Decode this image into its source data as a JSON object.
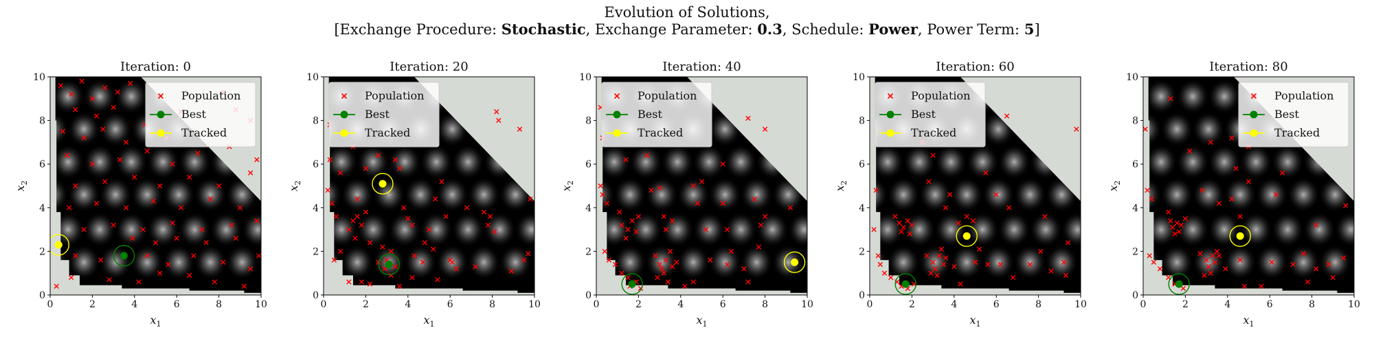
{
  "figure": {
    "title": "Evolution of Solutions,",
    "subtitle_parts": {
      "p1": "[Exchange Procedure: ",
      "b1": "Stochastic",
      "p2": ", Exchange Parameter: ",
      "b2": "0.3",
      "p3": ", Schedule: ",
      "b3": "Power",
      "p4": ", Power Term: ",
      "b4": "5",
      "p5": "]"
    }
  },
  "colors": {
    "population": "#ff0000",
    "best": "#008000",
    "tracked": "#ffff00",
    "infeasible": "#d6dad4",
    "background": "#000000"
  },
  "chart_data": [
    {
      "type": "scatter",
      "title": "Iteration: 0",
      "xlabel": "x1",
      "ylabel": "x2",
      "xlim": [
        0,
        10
      ],
      "ylim": [
        0,
        10
      ],
      "xticks": [
        0,
        2,
        4,
        6,
        8,
        10
      ],
      "yticks": [
        0,
        2,
        4,
        6,
        8,
        10
      ],
      "legend": {
        "placement": "top-right",
        "entries": [
          "Population",
          "Best",
          "Tracked"
        ]
      },
      "best": [
        3.5,
        1.8
      ],
      "tracked": [
        0.4,
        2.3
      ],
      "population_sample": [
        [
          0.5,
          9.6
        ],
        [
          1.0,
          9.2
        ],
        [
          1.5,
          9.8
        ],
        [
          2.0,
          9.0
        ],
        [
          2.6,
          9.5
        ],
        [
          3.2,
          9.3
        ],
        [
          3.8,
          9.7
        ],
        [
          1.2,
          8.5
        ],
        [
          2.2,
          8.2
        ],
        [
          3.0,
          8.6
        ],
        [
          0.6,
          7.5
        ],
        [
          1.6,
          7.2
        ],
        [
          2.5,
          7.6
        ],
        [
          3.6,
          7.0
        ],
        [
          4.5,
          7.8
        ],
        [
          5.5,
          7.2
        ],
        [
          6.2,
          8.4
        ],
        [
          8.2,
          9.3
        ],
        [
          8.8,
          8.5
        ],
        [
          9.5,
          8.0
        ],
        [
          0.8,
          6.4
        ],
        [
          2.0,
          6.0
        ],
        [
          3.3,
          6.2
        ],
        [
          4.6,
          6.6
        ],
        [
          5.8,
          6.0
        ],
        [
          7.0,
          6.5
        ],
        [
          8.5,
          6.8
        ],
        [
          9.8,
          6.2
        ],
        [
          1.2,
          5.0
        ],
        [
          2.6,
          5.2
        ],
        [
          4.0,
          5.4
        ],
        [
          5.2,
          5.0
        ],
        [
          6.6,
          5.4
        ],
        [
          8.0,
          5.0
        ],
        [
          9.5,
          5.6
        ],
        [
          0.9,
          4.0
        ],
        [
          2.2,
          4.2
        ],
        [
          3.6,
          4.0
        ],
        [
          4.9,
          4.3
        ],
        [
          6.2,
          4.0
        ],
        [
          7.6,
          4.4
        ],
        [
          9.0,
          4.0
        ],
        [
          1.6,
          3.0
        ],
        [
          3.0,
          3.2
        ],
        [
          4.4,
          3.0
        ],
        [
          5.8,
          3.3
        ],
        [
          7.2,
          3.0
        ],
        [
          8.6,
          3.2
        ],
        [
          9.8,
          3.4
        ],
        [
          1.2,
          1.8
        ],
        [
          2.4,
          1.6
        ],
        [
          4.6,
          1.8
        ],
        [
          5.6,
          1.4
        ],
        [
          6.8,
          1.8
        ],
        [
          8.2,
          1.5
        ],
        [
          9.5,
          1.2
        ],
        [
          1.0,
          0.8
        ],
        [
          2.8,
          0.7
        ],
        [
          4.2,
          0.6
        ],
        [
          5.2,
          1.0
        ],
        [
          6.6,
          0.9
        ],
        [
          7.8,
          0.6
        ],
        [
          9.2,
          0.4
        ],
        [
          0.3,
          0.4
        ],
        [
          5.0,
          2.4
        ],
        [
          7.4,
          2.4
        ],
        [
          3.9,
          2.6
        ],
        [
          6.0,
          2.6
        ],
        [
          8.8,
          2.6
        ],
        [
          9.9,
          1.8
        ]
      ]
    },
    {
      "type": "scatter",
      "title": "Iteration: 20",
      "xlabel": "x1",
      "ylabel": "x2",
      "xlim": [
        0,
        10
      ],
      "ylim": [
        0,
        10
      ],
      "xticks": [
        0,
        2,
        4,
        6,
        8,
        10
      ],
      "yticks": [
        0,
        2,
        4,
        6,
        8,
        10
      ],
      "legend": {
        "placement": "top-left",
        "entries": [
          "Population",
          "Best",
          "Tracked"
        ]
      },
      "best": [
        3.1,
        1.4
      ],
      "tracked": [
        2.8,
        5.1
      ],
      "population_sample": [
        [
          0.3,
          7.8
        ],
        [
          0.3,
          6.2
        ],
        [
          0.2,
          4.8
        ],
        [
          0.4,
          4.2
        ],
        [
          0.6,
          3.6
        ],
        [
          1.4,
          3.4
        ],
        [
          1.6,
          3.6
        ],
        [
          1.8,
          3.2
        ],
        [
          2.0,
          3.8
        ],
        [
          1.2,
          3.0
        ],
        [
          1.5,
          2.6
        ],
        [
          2.2,
          2.4
        ],
        [
          2.8,
          2.2
        ],
        [
          3.2,
          2.0
        ],
        [
          3.0,
          1.6
        ],
        [
          2.9,
          1.2
        ],
        [
          3.4,
          1.3
        ],
        [
          3.2,
          0.9
        ],
        [
          2.6,
          1.5
        ],
        [
          1.8,
          0.6
        ],
        [
          1.2,
          0.6
        ],
        [
          0.5,
          1.6
        ],
        [
          0.8,
          2.0
        ],
        [
          1.6,
          4.4
        ],
        [
          2.0,
          5.8
        ],
        [
          2.6,
          6.4
        ],
        [
          1.4,
          6.8
        ],
        [
          0.8,
          5.6
        ],
        [
          3.6,
          5.8
        ],
        [
          3.8,
          4.0
        ],
        [
          4.0,
          3.5
        ],
        [
          4.2,
          3.2
        ],
        [
          5.0,
          3.0
        ],
        [
          5.3,
          4.4
        ],
        [
          5.8,
          3.6
        ],
        [
          6.1,
          1.5
        ],
        [
          6.3,
          1.2
        ],
        [
          6.0,
          1.6
        ],
        [
          4.7,
          1.5
        ],
        [
          4.3,
          1.8
        ],
        [
          5.2,
          2.1
        ],
        [
          7.2,
          1.3
        ],
        [
          7.8,
          3.2
        ],
        [
          7.9,
          3.6
        ],
        [
          8.1,
          2.9
        ],
        [
          7.6,
          3.8
        ],
        [
          8.2,
          8.4
        ],
        [
          8.3,
          8.0
        ],
        [
          9.3,
          7.6
        ],
        [
          9.5,
          1.6
        ],
        [
          9.7,
          1.9
        ],
        [
          8.9,
          1.1
        ],
        [
          9.8,
          4.4
        ],
        [
          3.4,
          6.2
        ],
        [
          4.8,
          2.4
        ],
        [
          5.6,
          5.2
        ],
        [
          6.8,
          4.0
        ],
        [
          2.2,
          0.5
        ],
        [
          3.6,
          0.4
        ],
        [
          4.2,
          0.8
        ],
        [
          5.4,
          0.7
        ]
      ]
    },
    {
      "type": "scatter",
      "title": "Iteration: 40",
      "xlabel": "x1",
      "ylabel": "x2",
      "xlim": [
        0,
        10
      ],
      "ylim": [
        0,
        10
      ],
      "xticks": [
        0,
        2,
        4,
        6,
        8,
        10
      ],
      "yticks": [
        0,
        2,
        4,
        6,
        8,
        10
      ],
      "legend": {
        "placement": "top-left",
        "entries": [
          "Population",
          "Best",
          "Tracked"
        ]
      },
      "best": [
        1.7,
        0.5
      ],
      "tracked": [
        9.4,
        1.5
      ],
      "population_sample": [
        [
          0.2,
          8.6
        ],
        [
          0.3,
          7.2
        ],
        [
          0.2,
          5.0
        ],
        [
          0.3,
          4.6
        ],
        [
          0.5,
          4.2
        ],
        [
          0.4,
          2.0
        ],
        [
          0.6,
          1.6
        ],
        [
          0.9,
          1.4
        ],
        [
          1.2,
          1.0
        ],
        [
          1.5,
          0.8
        ],
        [
          1.6,
          0.4
        ],
        [
          1.9,
          0.6
        ],
        [
          2.1,
          0.3
        ],
        [
          1.2,
          3.2
        ],
        [
          1.5,
          3.0
        ],
        [
          1.7,
          3.4
        ],
        [
          1.9,
          2.9
        ],
        [
          1.4,
          2.6
        ],
        [
          2.0,
          3.6
        ],
        [
          1.1,
          3.8
        ],
        [
          2.8,
          1.8
        ],
        [
          3.0,
          1.4
        ],
        [
          3.1,
          1.2
        ],
        [
          3.3,
          1.6
        ],
        [
          3.5,
          2.0
        ],
        [
          3.2,
          1.0
        ],
        [
          3.6,
          1.3
        ],
        [
          3.8,
          1.5
        ],
        [
          2.9,
          0.8
        ],
        [
          3.4,
          0.6
        ],
        [
          4.2,
          0.4
        ],
        [
          4.6,
          0.6
        ],
        [
          2.6,
          4.8
        ],
        [
          3.0,
          4.9
        ],
        [
          3.2,
          3.6
        ],
        [
          3.3,
          3.0
        ],
        [
          3.6,
          3.4
        ],
        [
          4.6,
          5.0
        ],
        [
          4.8,
          4.2
        ],
        [
          5.0,
          5.2
        ],
        [
          5.2,
          3.0
        ],
        [
          6.2,
          3.0
        ],
        [
          6.4,
          2.0
        ],
        [
          6.2,
          1.4
        ],
        [
          7.0,
          1.2
        ],
        [
          7.2,
          0.6
        ],
        [
          7.7,
          2.2
        ],
        [
          7.8,
          3.2
        ],
        [
          8.0,
          3.6
        ],
        [
          6.0,
          4.2
        ],
        [
          7.5,
          4.4
        ],
        [
          7.2,
          8.1
        ],
        [
          8.0,
          7.6
        ],
        [
          9.2,
          4.0
        ],
        [
          1.4,
          6.2
        ],
        [
          2.4,
          6.4
        ],
        [
          5.4,
          1.6
        ],
        [
          6.0,
          6.0
        ]
      ]
    },
    {
      "type": "scatter",
      "title": "Iteration: 60",
      "xlabel": "x1",
      "ylabel": "x2",
      "xlim": [
        0,
        10
      ],
      "ylim": [
        0,
        10
      ],
      "xticks": [
        0,
        2,
        4,
        6,
        8,
        10
      ],
      "yticks": [
        0,
        2,
        4,
        6,
        8,
        10
      ],
      "legend": {
        "placement": "top-left",
        "entries": [
          "Population",
          "Best",
          "Tracked"
        ]
      },
      "best": [
        1.7,
        0.5
      ],
      "tracked": [
        4.6,
        2.7
      ],
      "population_sample": [
        [
          0.3,
          4.8
        ],
        [
          0.2,
          3.0
        ],
        [
          0.4,
          1.8
        ],
        [
          0.5,
          1.4
        ],
        [
          0.7,
          1.0
        ],
        [
          1.0,
          0.8
        ],
        [
          1.3,
          0.6
        ],
        [
          1.5,
          0.4
        ],
        [
          1.8,
          0.3
        ],
        [
          2.1,
          0.5
        ],
        [
          1.4,
          3.3
        ],
        [
          1.6,
          3.1
        ],
        [
          1.8,
          3.4
        ],
        [
          1.5,
          2.9
        ],
        [
          1.9,
          2.8
        ],
        [
          1.2,
          3.6
        ],
        [
          2.0,
          3.2
        ],
        [
          2.7,
          1.8
        ],
        [
          3.0,
          1.5
        ],
        [
          3.1,
          1.2
        ],
        [
          3.3,
          1.8
        ],
        [
          3.5,
          1.4
        ],
        [
          3.2,
          0.9
        ],
        [
          3.6,
          1.7
        ],
        [
          2.9,
          1.0
        ],
        [
          3.4,
          2.1
        ],
        [
          4.0,
          1.3
        ],
        [
          4.3,
          0.5
        ],
        [
          3.6,
          4.0
        ],
        [
          3.8,
          4.6
        ],
        [
          4.2,
          3.3
        ],
        [
          4.6,
          3.6
        ],
        [
          4.9,
          3.4
        ],
        [
          5.2,
          2.1
        ],
        [
          5.0,
          1.5
        ],
        [
          5.6,
          1.4
        ],
        [
          6.2,
          1.4
        ],
        [
          6.0,
          4.6
        ],
        [
          6.6,
          4.0
        ],
        [
          6.8,
          0.8
        ],
        [
          7.6,
          1.4
        ],
        [
          8.1,
          2.0
        ],
        [
          8.3,
          3.6
        ],
        [
          8.6,
          1.1
        ],
        [
          9.2,
          1.5
        ],
        [
          9.4,
          2.4
        ],
        [
          9.3,
          0.9
        ],
        [
          9.8,
          7.6
        ],
        [
          6.5,
          8.2
        ],
        [
          2.5,
          7.0
        ],
        [
          3.0,
          6.4
        ],
        [
          2.8,
          5.2
        ],
        [
          5.5,
          5.6
        ]
      ]
    },
    {
      "type": "scatter",
      "title": "Iteration: 80",
      "xlabel": "x1",
      "ylabel": "x2",
      "xlim": [
        0,
        10
      ],
      "ylim": [
        0,
        10
      ],
      "xticks": [
        0,
        2,
        4,
        6,
        8,
        10
      ],
      "yticks": [
        0,
        2,
        4,
        6,
        8,
        10
      ],
      "legend": {
        "placement": "top-right",
        "entries": [
          "Population",
          "Best",
          "Tracked"
        ]
      },
      "best": [
        1.7,
        0.5
      ],
      "tracked": [
        4.6,
        2.7
      ],
      "population_sample": [
        [
          0.1,
          7.6
        ],
        [
          0.2,
          4.8
        ],
        [
          0.4,
          4.4
        ],
        [
          0.3,
          1.8
        ],
        [
          0.5,
          1.5
        ],
        [
          0.8,
          1.2
        ],
        [
          1.2,
          0.8
        ],
        [
          1.5,
          0.5
        ],
        [
          1.9,
          0.3
        ],
        [
          1.3,
          3.4
        ],
        [
          1.4,
          3.1
        ],
        [
          1.6,
          3.3
        ],
        [
          1.7,
          2.9
        ],
        [
          1.8,
          3.2
        ],
        [
          1.5,
          2.8
        ],
        [
          2.0,
          3.5
        ],
        [
          1.2,
          3.8
        ],
        [
          2.7,
          1.9
        ],
        [
          3.0,
          1.6
        ],
        [
          3.1,
          1.3
        ],
        [
          3.3,
          1.8
        ],
        [
          3.4,
          1.5
        ],
        [
          3.2,
          1.0
        ],
        [
          3.6,
          1.8
        ],
        [
          2.9,
          0.9
        ],
        [
          3.5,
          2.0
        ],
        [
          3.9,
          1.2
        ],
        [
          4.6,
          1.6
        ],
        [
          4.8,
          0.4
        ],
        [
          2.8,
          4.8
        ],
        [
          3.6,
          4.2
        ],
        [
          4.6,
          3.6
        ],
        [
          4.2,
          4.4
        ],
        [
          5.0,
          5.2
        ],
        [
          5.6,
          0.4
        ],
        [
          6.1,
          1.5
        ],
        [
          7.1,
          1.4
        ],
        [
          7.6,
          1.9
        ],
        [
          7.8,
          0.6
        ],
        [
          8.2,
          1.2
        ],
        [
          8.8,
          1.4
        ],
        [
          9.0,
          0.8
        ],
        [
          9.5,
          1.7
        ],
        [
          9.6,
          4.1
        ],
        [
          8.2,
          3.2
        ],
        [
          6.3,
          4.6
        ],
        [
          6.6,
          5.6
        ],
        [
          5.0,
          6.8
        ],
        [
          2.2,
          6.6
        ],
        [
          1.3,
          9.0
        ],
        [
          3.2,
          7.0
        ],
        [
          4.2,
          7.2
        ],
        [
          4.4,
          5.8
        ]
      ]
    }
  ]
}
